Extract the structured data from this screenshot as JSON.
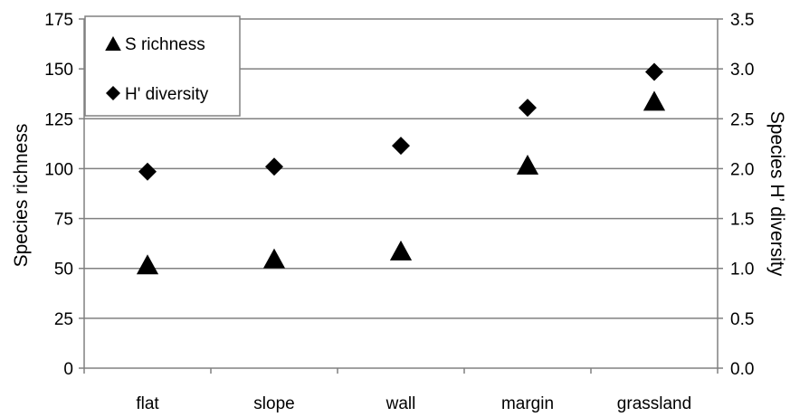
{
  "chart_data": {
    "type": "scatter",
    "categories": [
      "flat",
      "slope",
      "wall",
      "margin",
      "grassland"
    ],
    "series": [
      {
        "name": "S richness",
        "axis": "left",
        "marker": "triangle",
        "values": [
          52,
          55,
          59,
          102,
          134
        ]
      },
      {
        "name": "H' diversity",
        "axis": "right",
        "marker": "diamond",
        "values": [
          1.97,
          2.02,
          2.23,
          2.61,
          2.97
        ]
      }
    ],
    "ylabel": "Species richness",
    "y2label": "Species H’ diversity",
    "ylim": [
      0,
      175
    ],
    "y2lim": [
      0,
      3.5
    ],
    "yticks": [
      "0",
      "25",
      "50",
      "75",
      "100",
      "125",
      "150",
      "175"
    ],
    "y2ticks": [
      "0.0",
      "0.5",
      "1.0",
      "1.5",
      "2.0",
      "2.5",
      "3.0",
      "3.5"
    ],
    "grid": true,
    "legend_position": "top-left"
  }
}
